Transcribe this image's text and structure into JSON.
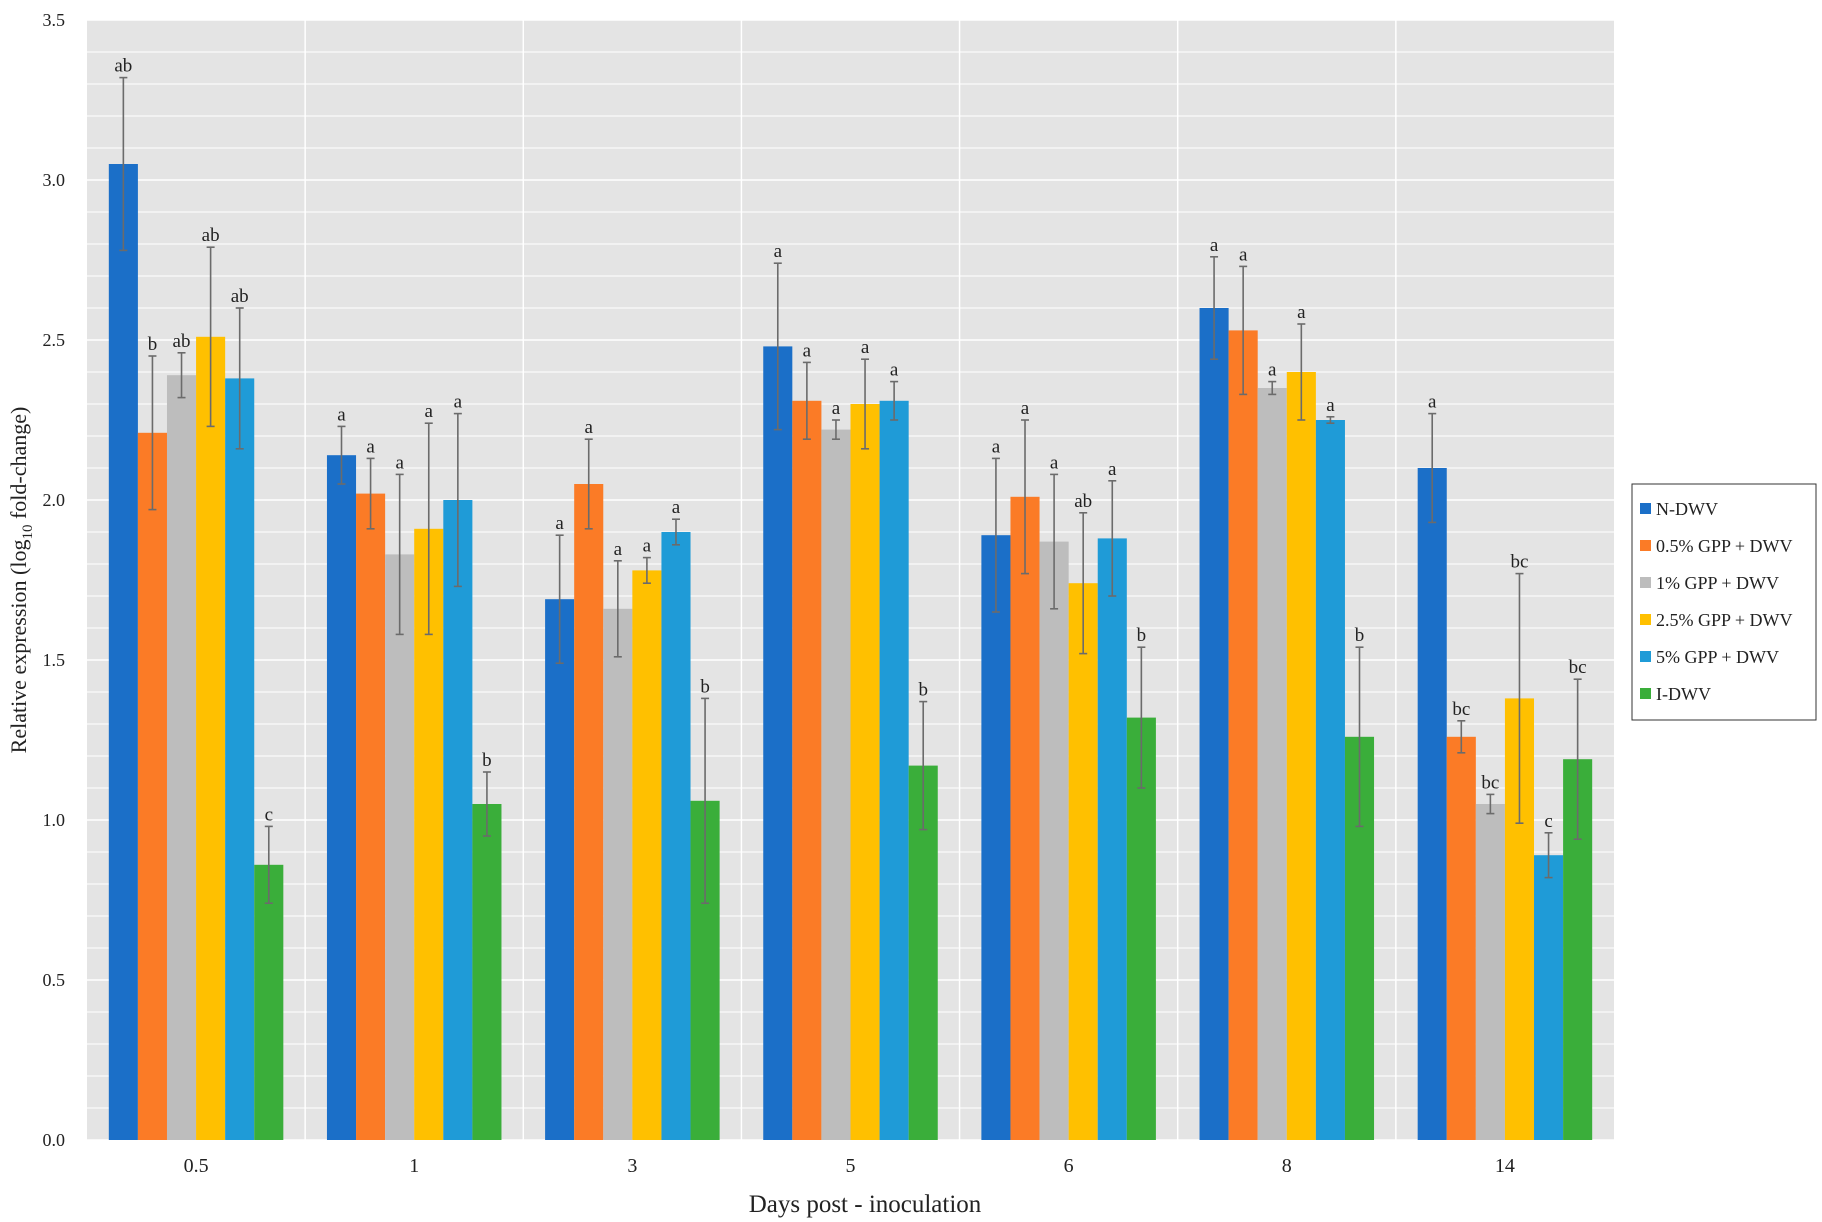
{
  "chart_data": {
    "type": "bar",
    "categories": [
      "0.5",
      "1",
      "3",
      "5",
      "6",
      "8",
      "14"
    ],
    "xlabel": "Days post - inoculation",
    "ylabel_parts": [
      "Relative  expression (log",
      "10",
      " fold-change)"
    ],
    "ylim": [
      0,
      3.5
    ],
    "yticks": [
      {
        "value": 0,
        "label": "0.0"
      },
      {
        "value": 0.5,
        "label": "0.5"
      },
      {
        "value": 1,
        "label": "1.0"
      },
      {
        "value": 1.5,
        "label": "1.5"
      },
      {
        "value": 2,
        "label": "2.0"
      },
      {
        "value": 2.5,
        "label": "2.5"
      },
      {
        "value": 3,
        "label": "3.0"
      },
      {
        "value": 3.5,
        "label": "3.5"
      }
    ],
    "grid": true,
    "minor_grid_step": 0.1,
    "legend": "right",
    "series": [
      {
        "name": "N-DWV",
        "color": "#1b6fc8",
        "values": [
          3.05,
          2.14,
          1.69,
          2.48,
          1.89,
          2.6,
          2.1
        ],
        "errors": [
          0.27,
          0.09,
          0.2,
          0.26,
          0.24,
          0.16,
          0.17
        ],
        "letters": [
          "ab",
          "a",
          "a",
          "a",
          "a",
          "a",
          "a"
        ]
      },
      {
        "name": "0.5% GPP + DWV",
        "color": "#fb7b26",
        "values": [
          2.21,
          2.02,
          2.05,
          2.31,
          2.01,
          2.53,
          1.26
        ],
        "errors": [
          0.24,
          0.11,
          0.14,
          0.12,
          0.24,
          0.2,
          0.05
        ],
        "letters": [
          "b",
          "a",
          "a",
          "a",
          "a",
          "a",
          "bc"
        ]
      },
      {
        "name": "1% GPP + DWV",
        "color": "#bdbdbd",
        "values": [
          2.39,
          1.83,
          1.66,
          2.22,
          1.87,
          2.35,
          1.05
        ],
        "errors": [
          0.07,
          0.25,
          0.15,
          0.03,
          0.21,
          0.02,
          0.03
        ],
        "letters": [
          "ab",
          "a",
          "a",
          "a",
          "a",
          "a",
          "bc"
        ]
      },
      {
        "name": "2.5% GPP + DWV",
        "color": "#ffc000",
        "values": [
          2.51,
          1.91,
          1.78,
          2.3,
          1.74,
          2.4,
          1.38
        ],
        "errors": [
          0.28,
          0.33,
          0.04,
          0.14,
          0.22,
          0.15,
          0.39
        ],
        "letters": [
          "ab",
          "a",
          "a",
          "a",
          "ab",
          "a",
          "bc"
        ]
      },
      {
        "name": "5% GPP + DWV",
        "color": "#1f9bd7",
        "values": [
          2.38,
          2.0,
          1.9,
          2.31,
          1.88,
          2.25,
          0.89
        ],
        "errors": [
          0.22,
          0.27,
          0.04,
          0.06,
          0.18,
          0.01,
          0.07
        ],
        "letters": [
          "ab",
          "a",
          "a",
          "a",
          "a",
          "a",
          "c"
        ]
      },
      {
        "name": "I-DWV",
        "color": "#3aae3a",
        "values": [
          0.86,
          1.05,
          1.06,
          1.17,
          1.32,
          1.26,
          1.19
        ],
        "errors": [
          0.12,
          0.1,
          0.32,
          0.2,
          0.22,
          0.28,
          0.25
        ],
        "letters": [
          "c",
          "b",
          "b",
          "b",
          "b",
          "b",
          "bc"
        ]
      }
    ]
  }
}
